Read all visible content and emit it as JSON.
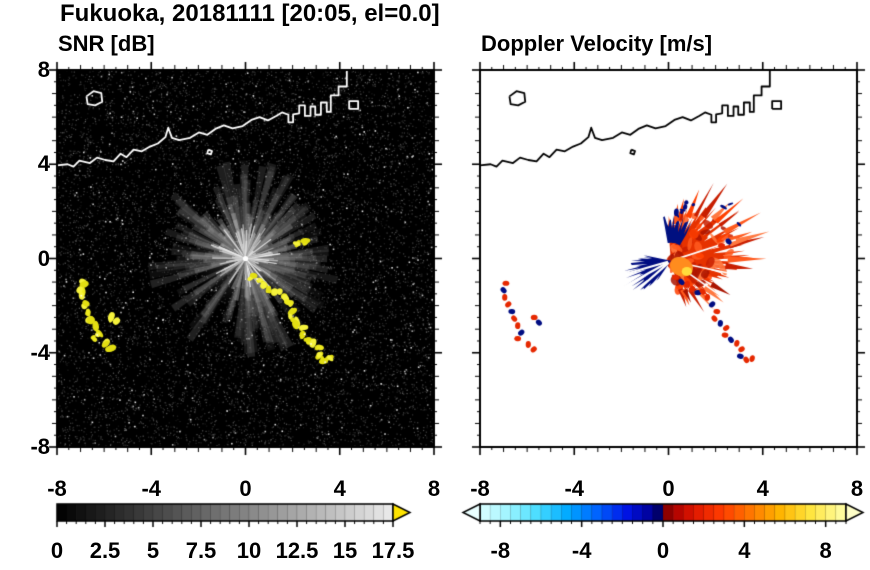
{
  "figure": {
    "title": "Fukuoka, 20181111 [20:05, el=0.0]"
  },
  "chart_data": [
    {
      "type": "heatmap",
      "panel": "snr",
      "title": "SNR [dB]",
      "x_range": [
        -8,
        8
      ],
      "y_range": [
        -8,
        8
      ],
      "x_ticks": [
        -8,
        -4,
        0,
        4,
        8
      ],
      "y_ticks": [
        8,
        4,
        0,
        -4,
        -8
      ],
      "minor_tick_step": 0.5,
      "background_color": "#000000",
      "colorbar": {
        "range": [
          0,
          17.5
        ],
        "step": 0.5,
        "tick_values": [
          0,
          2.5,
          5,
          7.5,
          10,
          12.5,
          15,
          17.5
        ],
        "tick_labels": [
          "0",
          "2.5",
          "5",
          "7.5",
          "10",
          "12.5",
          "15",
          "17.5"
        ],
        "colormap": [
          [
            0,
            "#000000"
          ],
          [
            1,
            "#ebebeb"
          ]
        ],
        "over_arrow_color": "#ffe400"
      },
      "noise": {
        "seed": 33,
        "count": 9500,
        "bright_specks": 380
      },
      "rays": {
        "seed": 21,
        "count": 560,
        "max_r": 3.9,
        "bright_count": 100,
        "gaps": [
          [
            196,
            205
          ],
          [
            221,
            229
          ],
          [
            238,
            247
          ],
          [
            258,
            264
          ],
          [
            118,
            124
          ]
        ]
      },
      "echo_colors": [
        "#eeea1e",
        "#f6f33c",
        "#e3df12"
      ],
      "echo_chains": {
        "southeast_chain": [
          [
            0.3,
            -0.8
          ],
          [
            0.55,
            -1.0
          ],
          [
            0.8,
            -1.1
          ],
          [
            1.0,
            -1.3
          ],
          [
            1.25,
            -1.45
          ],
          [
            1.45,
            -1.4
          ],
          [
            1.65,
            -1.65
          ],
          [
            1.85,
            -1.95
          ],
          [
            2.05,
            -2.25
          ],
          [
            1.95,
            -2.55
          ],
          [
            2.2,
            -2.75
          ],
          [
            2.45,
            -2.95
          ],
          [
            2.4,
            -3.25
          ],
          [
            2.65,
            -3.45
          ],
          [
            2.9,
            -3.6
          ],
          [
            3.1,
            -3.85
          ],
          [
            3.05,
            -4.15
          ],
          [
            3.3,
            -4.3
          ],
          [
            3.55,
            -4.25
          ]
        ],
        "west_arc": [
          [
            -6.9,
            -1.05
          ],
          [
            -7.0,
            -1.35
          ],
          [
            -6.95,
            -1.65
          ],
          [
            -6.8,
            -1.95
          ],
          [
            -6.65,
            -2.25
          ],
          [
            -6.55,
            -2.55
          ],
          [
            -6.4,
            -2.85
          ],
          [
            -6.25,
            -3.15
          ],
          [
            -6.4,
            -3.4
          ]
        ],
        "west_bits": [
          [
            -5.7,
            -2.5
          ],
          [
            -5.5,
            -2.72
          ],
          [
            -5.95,
            -3.65
          ],
          [
            -5.72,
            -3.86
          ]
        ],
        "northeast_specks": [
          [
            2.25,
            0.55
          ],
          [
            2.55,
            0.72
          ]
        ]
      }
    },
    {
      "type": "heatmap",
      "panel": "doppler",
      "title": "Doppler Velocity [m/s]",
      "x_range": [
        -8,
        8
      ],
      "y_range": [
        -8,
        8
      ],
      "x_ticks": [
        -8,
        -4,
        0,
        4,
        8
      ],
      "y_ticks": [
        8,
        4,
        0,
        -4,
        -8
      ],
      "minor_tick_step": 0.5,
      "background_color": "#ffffff",
      "colorbar": {
        "range": [
          -9,
          9
        ],
        "step": 0.5,
        "tick_values": [
          -8,
          -4,
          0,
          4,
          8
        ],
        "tick_labels": [
          "-8",
          "-4",
          "0",
          "4",
          "8"
        ],
        "colormap": [
          [
            0,
            "#dcffff"
          ],
          [
            0.08,
            "#9cf4ff"
          ],
          [
            0.16,
            "#46dcff"
          ],
          [
            0.24,
            "#00a8ff"
          ],
          [
            0.32,
            "#0064ff"
          ],
          [
            0.4,
            "#0014e6"
          ],
          [
            0.47,
            "#000096"
          ],
          [
            0.499,
            "#00004b"
          ],
          [
            0.501,
            "#780000"
          ],
          [
            0.53,
            "#aa0000"
          ],
          [
            0.58,
            "#dc1400"
          ],
          [
            0.66,
            "#ff3c00"
          ],
          [
            0.74,
            "#ff7800"
          ],
          [
            0.82,
            "#ffb400"
          ],
          [
            0.9,
            "#ffe43c"
          ],
          [
            1,
            "#ffffaa"
          ]
        ],
        "under_arrow_color": "#eaffff",
        "over_arrow_color": "#ffffc8"
      },
      "velocity_field": {
        "center": [
          0.1,
          -0.1
        ],
        "away_fan": {
          "seed": 11,
          "ang_start": -75,
          "ang_end": 95,
          "radius_profile": [
            [
              -75,
              1.5
            ],
            [
              -50,
              2.0
            ],
            [
              -25,
              2.6
            ],
            [
              0,
              3.0
            ],
            [
              20,
              3.3
            ],
            [
              45,
              3.15
            ],
            [
              65,
              2.6
            ],
            [
              82,
              2.0
            ],
            [
              95,
              1.5
            ]
          ],
          "color": "#e63200",
          "texture_colors": [
            "#ff5a1e",
            "#c81e00",
            "#ff7840",
            "#aa1400",
            "#ff4000"
          ],
          "slit_angles": [
            -35,
            -12,
            18
          ]
        },
        "toward_wedge": {
          "seed": 5,
          "ang_start": 168,
          "ang_end": 236,
          "radius_profile": [
            [
              168,
              1.2
            ],
            [
              185,
              1.9
            ],
            [
              205,
              2.25
            ],
            [
              225,
              1.8
            ],
            [
              236,
              1.1
            ]
          ],
          "color": "#000d82",
          "slit_angles": [
            196,
            209,
            221
          ]
        },
        "toward_cap": {
          "seed": 9,
          "ang_start": 60,
          "ang_end": 100,
          "r_inner": 0.85,
          "r_max": 2.0,
          "color": "#001080"
        },
        "core": {
          "pos": [
            0.55,
            -0.35
          ],
          "r": 0.5,
          "color": "#ff8c1e"
        },
        "core_inner": {
          "pos": [
            0.78,
            -0.55
          ],
          "r": 0.22,
          "color": "#ffdc3c"
        },
        "satellite_red": "#e62800",
        "satellite_navy": "#000d82",
        "satellite_navy_every": 3
      }
    }
  ],
  "coastline": {
    "color_on_snr": "#ffffff",
    "color_on_doppler": "#000000",
    "polylines": [
      [
        [
          -8,
          3.95
        ],
        [
          -7.55,
          4.0
        ],
        [
          -7.3,
          3.9
        ],
        [
          -7.05,
          4.15
        ],
        [
          -6.6,
          4.05
        ],
        [
          -6.3,
          4.28
        ],
        [
          -5.95,
          4.18
        ],
        [
          -5.6,
          4.12
        ],
        [
          -5.3,
          4.45
        ],
        [
          -5.05,
          4.3
        ],
        [
          -4.75,
          4.62
        ],
        [
          -4.4,
          4.55
        ],
        [
          -4.05,
          4.75
        ],
        [
          -3.72,
          4.88
        ],
        [
          -3.4,
          5.15
        ],
        [
          -3.28,
          5.55
        ],
        [
          -3.12,
          5.12
        ],
        [
          -2.82,
          5.02
        ],
        [
          -2.35,
          5.12
        ],
        [
          -1.98,
          5.35
        ],
        [
          -1.62,
          5.25
        ],
        [
          -1.28,
          5.5
        ],
        [
          -0.92,
          5.65
        ],
        [
          -0.55,
          5.52
        ],
        [
          -0.12,
          5.62
        ],
        [
          0.25,
          5.88
        ],
        [
          0.6,
          6.0
        ],
        [
          0.95,
          5.86
        ],
        [
          1.3,
          6.05
        ],
        [
          1.55,
          6.2
        ],
        [
          1.82,
          6.1
        ],
        [
          1.82,
          5.78
        ],
        [
          2.02,
          5.78
        ],
        [
          2.02,
          6.12
        ],
        [
          2.28,
          6.16
        ],
        [
          2.28,
          6.5
        ],
        [
          2.52,
          6.5
        ],
        [
          2.52,
          6.05
        ],
        [
          2.76,
          6.05
        ],
        [
          2.76,
          6.45
        ],
        [
          2.96,
          6.45
        ],
        [
          2.96,
          6.1
        ],
        [
          3.2,
          6.1
        ],
        [
          3.2,
          6.62
        ],
        [
          3.45,
          6.62
        ],
        [
          3.45,
          6.22
        ],
        [
          3.62,
          6.22
        ],
        [
          3.62,
          6.92
        ],
        [
          3.95,
          6.92
        ],
        [
          3.95,
          7.3
        ],
        [
          4.3,
          7.3
        ],
        [
          4.3,
          8.05
        ]
      ],
      [
        [
          -6.75,
          6.88
        ],
        [
          -6.45,
          7.1
        ],
        [
          -6.12,
          7.02
        ],
        [
          -6.08,
          6.65
        ],
        [
          -6.38,
          6.5
        ],
        [
          -6.7,
          6.55
        ],
        [
          -6.75,
          6.88
        ]
      ],
      [
        [
          -1.58,
          4.62
        ],
        [
          -1.42,
          4.56
        ],
        [
          -1.47,
          4.42
        ],
        [
          -1.62,
          4.47
        ],
        [
          -1.58,
          4.62
        ]
      ],
      [
        [
          4.4,
          6.35
        ],
        [
          4.78,
          6.35
        ],
        [
          4.78,
          6.68
        ],
        [
          4.4,
          6.68
        ],
        [
          4.4,
          6.35
        ]
      ]
    ]
  }
}
